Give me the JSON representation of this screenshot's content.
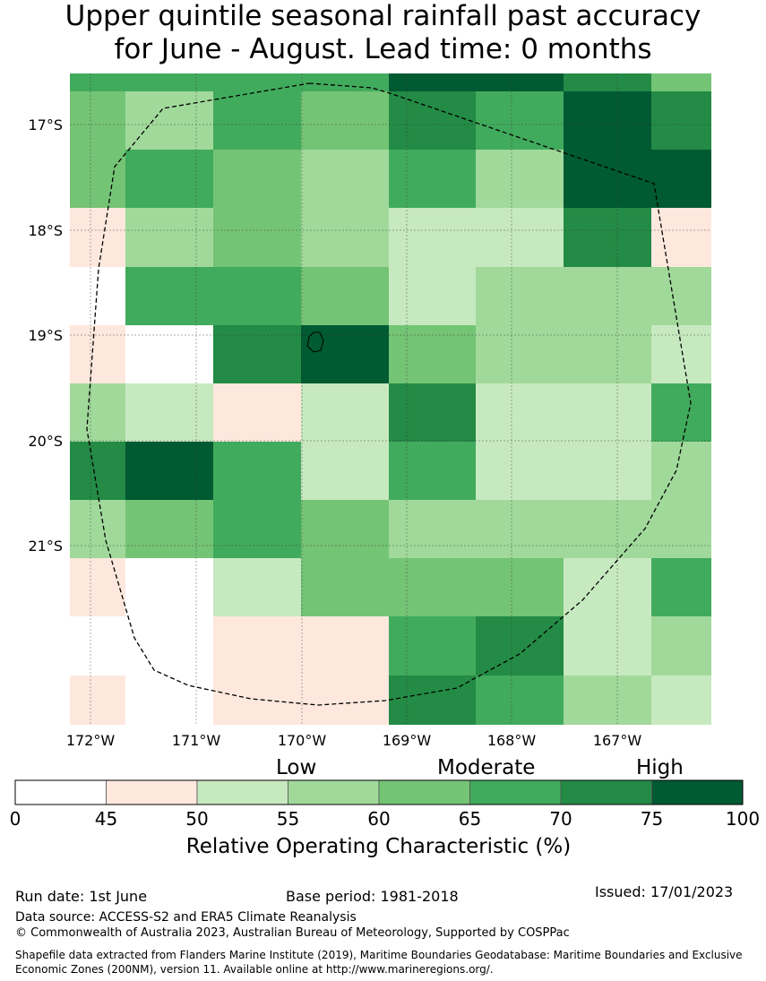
{
  "title_line1": "Upper quintile seasonal rainfall past accuracy",
  "title_line2": "for June - August. Lead time: 0 months",
  "map": {
    "lat_labels": [
      "17°S",
      "18°S",
      "19°S",
      "20°S",
      "21°S"
    ],
    "lon_labels": [
      "172°W",
      "171°W",
      "170°W",
      "169°W",
      "168°W",
      "167°W"
    ],
    "colors": {
      "0": "#ffffff",
      "1": "#fee8de",
      "2": "#c7e9c0",
      "3": "#a1d99b",
      "4": "#74c476",
      "5": "#41ab5d",
      "6": "#238b45",
      "7": "#005a32"
    },
    "grid": [
      [
        5,
        5,
        5,
        5,
        7,
        7,
        6,
        4
      ],
      [
        4,
        3,
        5,
        4,
        6,
        5,
        7,
        6
      ],
      [
        4,
        5,
        4,
        3,
        5,
        3,
        7,
        7
      ],
      [
        1,
        3,
        4,
        3,
        2,
        2,
        6,
        1
      ],
      [
        0,
        5,
        5,
        4,
        2,
        3,
        3,
        3
      ],
      [
        1,
        0,
        6,
        7,
        4,
        3,
        3,
        2
      ],
      [
        3,
        2,
        1,
        2,
        6,
        2,
        2,
        5
      ],
      [
        6,
        7,
        5,
        2,
        5,
        2,
        2,
        3
      ],
      [
        3,
        4,
        5,
        4,
        3,
        3,
        3,
        3
      ],
      [
        1,
        0,
        2,
        4,
        4,
        4,
        2,
        5
      ],
      [
        0,
        0,
        1,
        1,
        5,
        6,
        2,
        3
      ],
      [
        1,
        0,
        1,
        1,
        6,
        5,
        3,
        2
      ]
    ]
  },
  "colorbar": {
    "category_low": "Low",
    "category_moderate": "Moderate",
    "category_high": "High",
    "ticks": [
      "0",
      "45",
      "50",
      "55",
      "60",
      "65",
      "70",
      "75",
      "100"
    ],
    "title": "Relative Operating Characteristic (%)"
  },
  "footer": {
    "run_date": "Run date: 1st June",
    "base_period": "Base period: 1981-2018",
    "issued": "Issued: 17/01/2023",
    "data_source": "Data source: ACCESS-S2 and ERA5 Climate Reanalysis",
    "copyright": "© Commonwealth of Australia 2023, Australian Bureau of Meteorology, Supported by COSPPac",
    "shapefile": "Shapefile data extracted from Flanders Marine Institute (2019), Maritime Boundaries Geodatabase: Maritime Boundaries and Exclusive Economic Zones (200NM), version 11. Available online at http://www.marineregions.org/."
  }
}
